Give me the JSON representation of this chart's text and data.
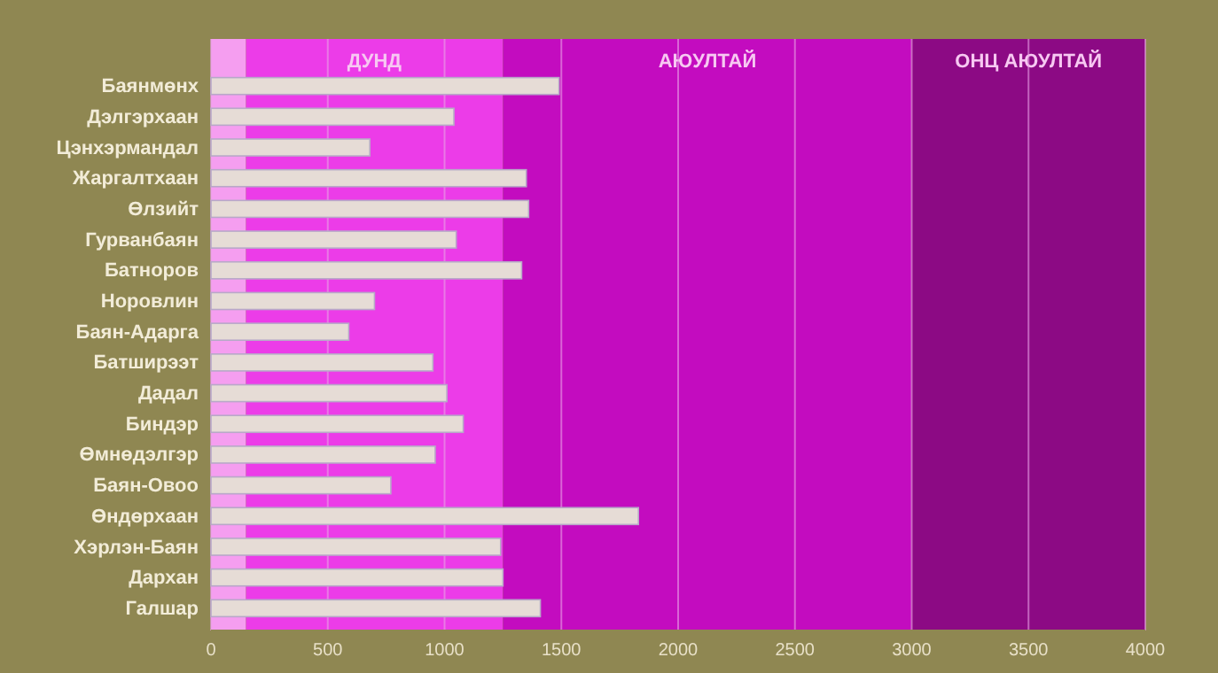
{
  "chart_data": {
    "type": "bar",
    "orientation": "horizontal",
    "categories": [
      "Баянмөнх",
      "Дэлгэрхаан",
      "Цэнхэрмандал",
      "Жаргалтхаан",
      "Өлзийт",
      "Гурванбаян",
      "Батноров",
      "Норовлин",
      "Баян-Адарга",
      "Батширээт",
      "Дадал",
      "Биндэр",
      "Өмнөдэлгэр",
      "Баян-Овоо",
      "Өндөрхаан",
      "Хэрлэн-Баян",
      "Дархан",
      "Галшар"
    ],
    "series": [
      {
        "color": "#e6dcd6",
        "values": [
          1490,
          1040,
          680,
          1350,
          1360,
          1050,
          1330,
          700,
          590,
          950,
          1010,
          1080,
          960,
          770,
          1830,
          1240,
          1250,
          1410
        ]
      }
    ],
    "xlim": [
      0,
      4000
    ],
    "xticks": [
      0,
      500,
      1000,
      1500,
      2000,
      2500,
      3000,
      3500,
      4000
    ],
    "grid": "x",
    "bands": [
      {
        "axis": "x",
        "from": 0,
        "to": 150,
        "label": null,
        "color": "#f59ef0"
      },
      {
        "axis": "x",
        "from": 150,
        "to": 1250,
        "label": "ДУНД",
        "color": "#ec3ce8"
      },
      {
        "axis": "x",
        "from": 1250,
        "to": 3000,
        "label": "АЮУЛТАЙ",
        "color": "#c30cbf"
      },
      {
        "axis": "x",
        "from": 3000,
        "to": 4000,
        "label": "ОНЦ АЮУЛТАЙ",
        "color": "#8c0a84"
      }
    ]
  }
}
